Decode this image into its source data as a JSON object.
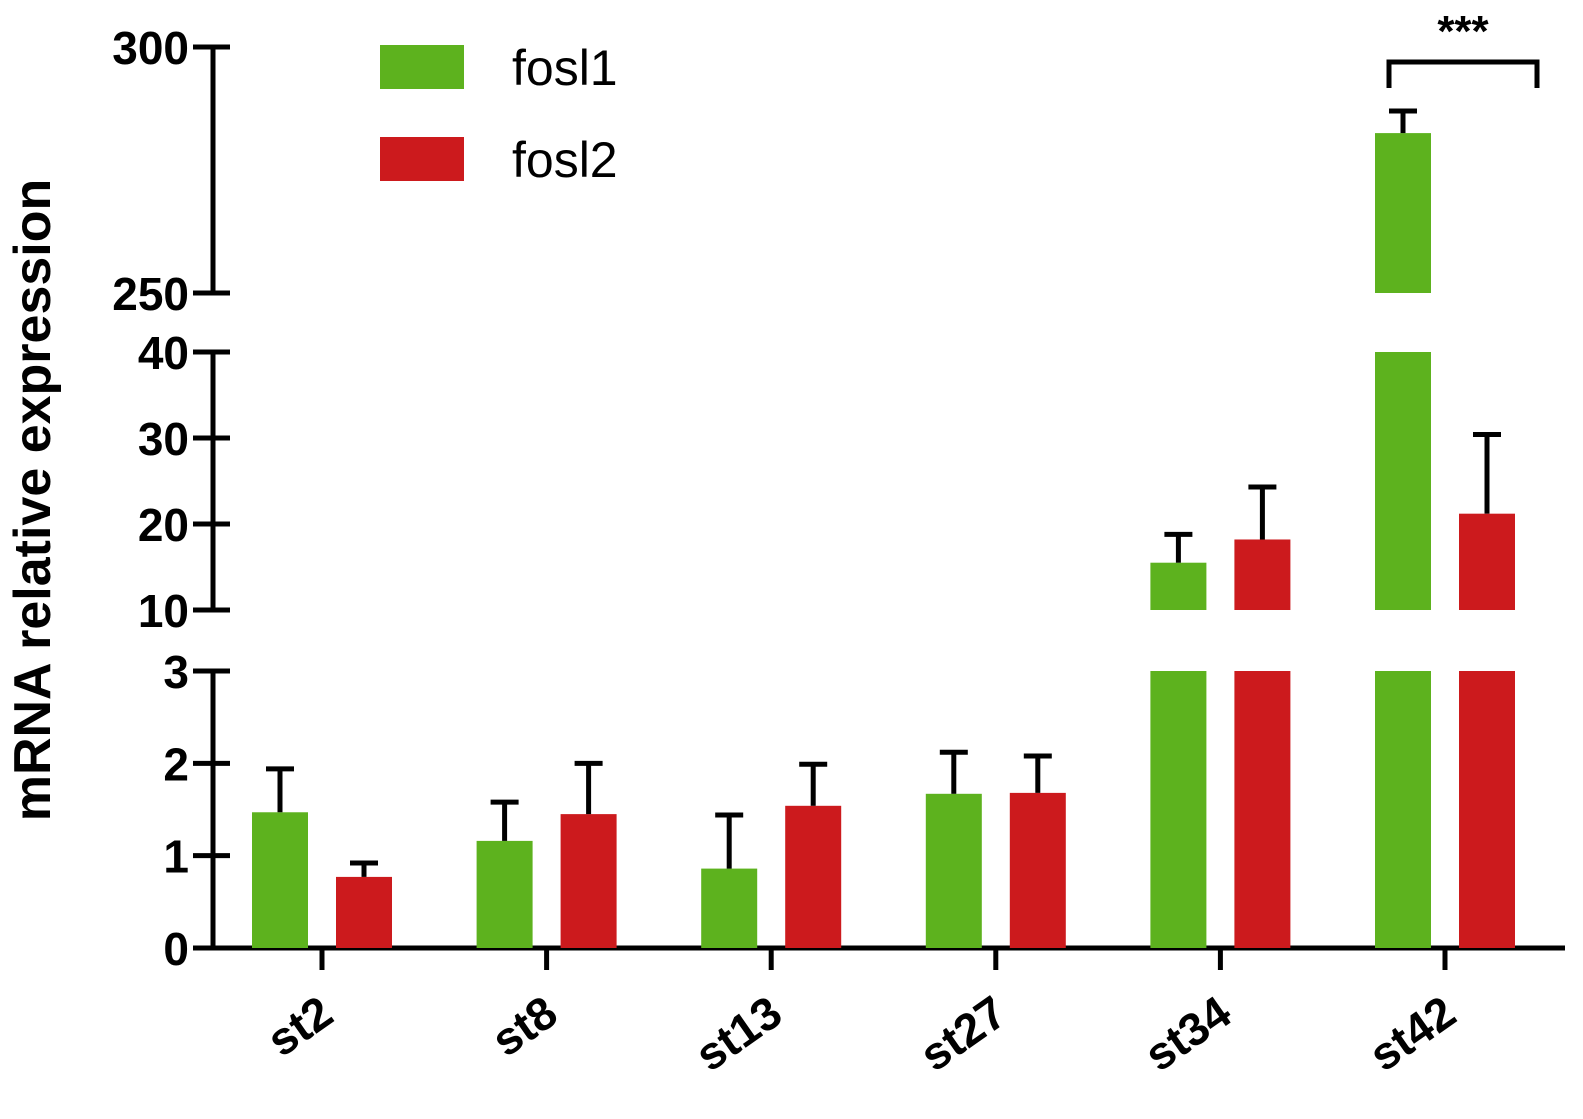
{
  "chart_data": {
    "type": "bar",
    "title": "",
    "xlabel": "",
    "ylabel": "mRNA relative expression",
    "categories": [
      "st2",
      "st8",
      "st13",
      "st27",
      "st34",
      "st42"
    ],
    "series": [
      {
        "name": "fosl1",
        "color": "#5db21e",
        "values": [
          1.47,
          1.16,
          0.86,
          1.67,
          15.5,
          282.5
        ],
        "errors": [
          0.47,
          0.42,
          0.58,
          0.45,
          3.3,
          4.5
        ]
      },
      {
        "name": "fosl2",
        "color": "#cc1a1d",
        "values": [
          0.77,
          1.45,
          1.54,
          1.68,
          18.2,
          21.2
        ],
        "errors": [
          0.15,
          0.55,
          0.45,
          0.4,
          6.1,
          9.2
        ]
      }
    ],
    "y_axis_segments": [
      {
        "range": [
          0,
          3
        ],
        "ticks": [
          "0",
          "1",
          "2",
          "3"
        ]
      },
      {
        "range": [
          10,
          40
        ],
        "ticks": [
          "10",
          "20",
          "30",
          "40"
        ]
      },
      {
        "range": [
          250,
          300
        ],
        "ticks": [
          "250",
          "300"
        ]
      }
    ],
    "legend_position": "top-left",
    "grid": false,
    "annotations": [
      {
        "text": "***",
        "category": "st42",
        "type": "significance-bracket"
      }
    ]
  }
}
